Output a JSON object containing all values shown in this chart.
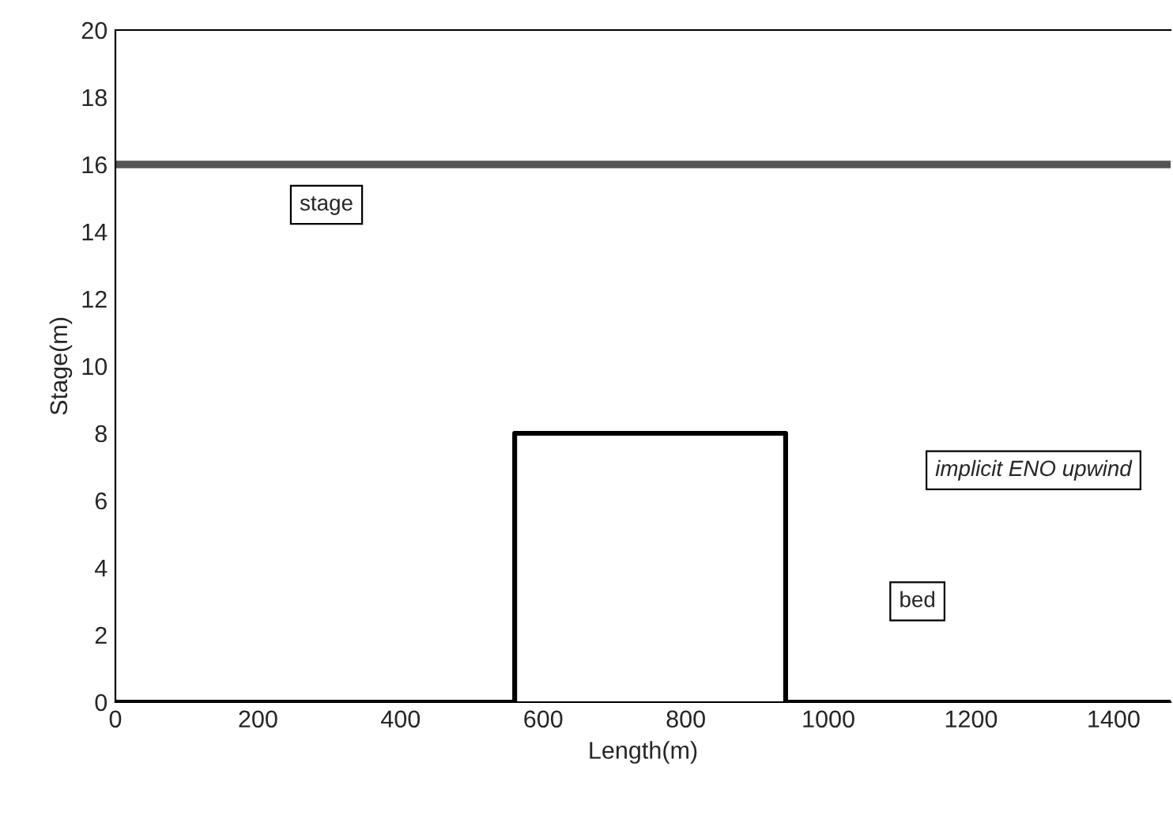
{
  "chart_data": {
    "type": "line",
    "xlabel": "Length(m)",
    "ylabel": "Stage(m)",
    "xlim": [
      0,
      1480
    ],
    "xticks": [
      0,
      200,
      400,
      600,
      800,
      1000,
      1200,
      1400
    ],
    "ylim": [
      0,
      20
    ],
    "yticks": [
      0,
      2,
      4,
      6,
      8,
      10,
      12,
      14,
      16,
      18,
      20
    ],
    "series": [
      {
        "name": "stage",
        "color": "#555555",
        "x": [
          0,
          1480
        ],
        "values": [
          16,
          16
        ]
      },
      {
        "name": "bed",
        "color": "#000000",
        "x": [
          0,
          560,
          560,
          940,
          940,
          1480
        ],
        "values": [
          0,
          0,
          8,
          8,
          0,
          0
        ]
      }
    ],
    "annotations": [
      "implicit ENO upwind"
    ],
    "grid": false
  }
}
